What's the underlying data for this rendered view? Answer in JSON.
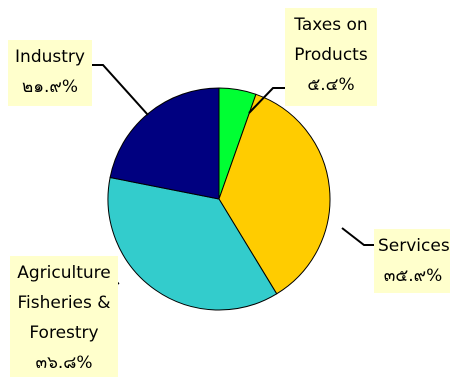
{
  "chart_data": {
    "type": "pie",
    "slices": [
      {
        "label_lines": [
          "Taxes on",
          "Products"
        ],
        "value_text": "๕.๔%",
        "value": 5.4,
        "color": "#00ff33"
      },
      {
        "label_lines": [
          "Services"
        ],
        "value_text": "๓๕.๙%",
        "value": 35.9,
        "color": "#ffcc00"
      },
      {
        "label_lines": [
          "Agriculture",
          "Fisheries &",
          "Forestry"
        ],
        "value_text": "๓๖.๘%",
        "value": 36.8,
        "color": "#33cccc"
      },
      {
        "label_lines": [
          "Industry"
        ],
        "value_text": "๒๑.๙%",
        "value": 21.9,
        "color": "#000080"
      }
    ],
    "start": "12 o'clock",
    "direction": "clockwise",
    "label_background": "#ffffcc",
    "slice_border": "#000000"
  }
}
